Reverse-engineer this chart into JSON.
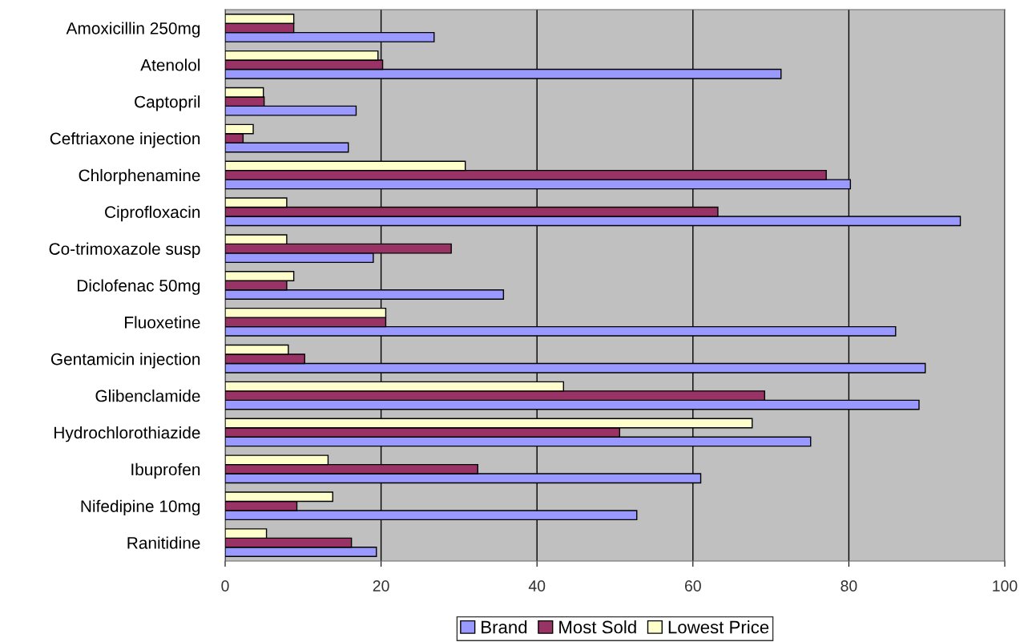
{
  "chart_data": {
    "type": "bar",
    "orientation": "horizontal",
    "categories": [
      "Amoxicillin 250mg",
      "Atenolol",
      "Captopril",
      "Ceftriaxone injection",
      "Chlorphenamine",
      "Ciprofloxacin",
      "Co-trimoxazole susp",
      "Diclofenac 50mg",
      "Fluoxetine",
      "Gentamicin injection",
      "Glibenclamide",
      "Hydrochlorothiazide",
      "Ibuprofen",
      "Nifedipine 10mg",
      "Ranitidine"
    ],
    "series": [
      {
        "name": "Brand",
        "color": "#9999ff",
        "values": [
          26.8,
          71.3,
          16.8,
          15.8,
          80.2,
          94.3,
          19,
          35.7,
          86,
          89.8,
          89,
          75.1,
          61,
          52.8,
          19.4
        ]
      },
      {
        "name": "Most Sold",
        "color": "#993366",
        "values": [
          8.8,
          20.2,
          5,
          2.3,
          77.1,
          63.2,
          29,
          7.9,
          20.6,
          10.2,
          69.2,
          50.6,
          32.4,
          9.2,
          16.2
        ]
      },
      {
        "name": "Lowest Price",
        "color": "#ffffcc",
        "values": [
          8.8,
          19.6,
          4.9,
          3.6,
          30.8,
          7.9,
          7.9,
          8.8,
          20.6,
          8.1,
          43.4,
          67.6,
          13.2,
          13.8,
          5.3
        ]
      }
    ],
    "xlim": [
      0,
      100
    ],
    "xticks": [
      0,
      20,
      40,
      60,
      80,
      100
    ],
    "grid": "x",
    "legend": "bottom"
  }
}
